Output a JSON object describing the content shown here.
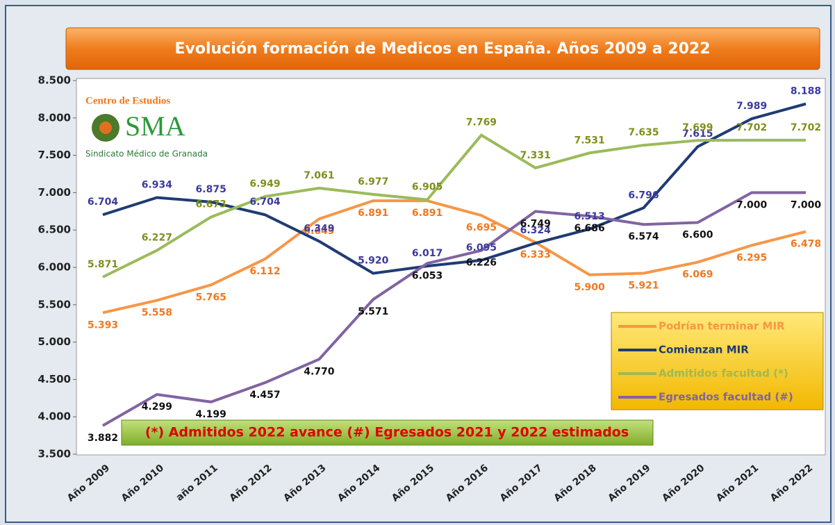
{
  "chart_data": {
    "type": "line",
    "title": "Evolución formación de Medicos en España. Años 2009 a 2022",
    "logo": {
      "title": "Centro de Estudios",
      "mark": "SMA",
      "subtitle": "Sindicato Médico de Granada"
    },
    "note": "(*) Admitidos 2022 avance (#) Egresados 2021 y 2022 estimados",
    "categories": [
      "Año 2009",
      "Año 2010",
      "año 2011",
      "Año 2012",
      "Año 2013",
      "Año 2014",
      "Año 2015",
      "Año 2016",
      "Año 2017",
      "Año 2018",
      "Año 2019",
      "Año 2020",
      "Año 2021",
      "Año 2022"
    ],
    "ylim": [
      3500,
      8500
    ],
    "yticks": [
      {
        "value": 3500,
        "label": "3.500"
      },
      {
        "value": 4000,
        "label": "4.000"
      },
      {
        "value": 4500,
        "label": "4.500"
      },
      {
        "value": 5000,
        "label": "5.000"
      },
      {
        "value": 5500,
        "label": "5.500"
      },
      {
        "value": 6000,
        "label": "6.000"
      },
      {
        "value": 6500,
        "label": "6.500"
      },
      {
        "value": 7000,
        "label": "7.000"
      },
      {
        "value": 7500,
        "label": "7.500"
      },
      {
        "value": 8000,
        "label": "8.000"
      },
      {
        "value": 8500,
        "label": "8.500"
      }
    ],
    "legend_position": "lower right",
    "series": [
      {
        "name": "Podrían terminar MIR",
        "color": "#f79646",
        "label_color": "#f07820",
        "values": [
          5393,
          5558,
          5765,
          6112,
          6649,
          6891,
          6891,
          6695,
          6333,
          5900,
          5921,
          6069,
          6295,
          6478
        ],
        "value_labels": [
          "5.393",
          "5.558",
          "5.765",
          "6.112",
          "6.649",
          "6.891",
          "6.891",
          "6.695",
          "6.333",
          "5.900",
          "5.921",
          "6.069",
          "6.295",
          "6.478"
        ]
      },
      {
        "name": "Comienzan MIR",
        "color": "#1f3b73",
        "label_color": "#3a3aa0",
        "values": [
          6704,
          6934,
          6875,
          6704,
          6349,
          5920,
          6017,
          6095,
          6324,
          6513,
          6796,
          7615,
          7989,
          8188
        ],
        "value_labels": [
          "6.704",
          "6.934",
          "6.875",
          "6.704",
          "6.349",
          "5.920",
          "6.017",
          "6.095",
          "6.324",
          "6.513",
          "6.796",
          "7.615",
          "7.989",
          "8.188"
        ]
      },
      {
        "name": "Admitidos facultad (*)",
        "color": "#9bbb59",
        "label_color": "#7f8f1a",
        "values": [
          5871,
          6227,
          6673,
          6949,
          7061,
          6977,
          6905,
          7769,
          7331,
          7531,
          7635,
          7699,
          7702,
          7702
        ],
        "value_labels": [
          "5.871",
          "6.227",
          "6.673",
          "6.949",
          "7.061",
          "6.977",
          "6.905",
          "7.769",
          "7.331",
          "7.531",
          "7.635",
          "7.699",
          "7.702",
          "7.702"
        ]
      },
      {
        "name": "Egresados facultad (#)",
        "color": "#8064a2",
        "label_color": "#111111",
        "values": [
          3882,
          4299,
          4199,
          4457,
          4770,
          5571,
          6053,
          6226,
          6749,
          6686,
          6574,
          6600,
          7000,
          7000
        ],
        "value_labels": [
          "3.882",
          "4.299",
          "4.199",
          "4.457",
          "4.770",
          "5.571",
          "6.053",
          "6.226",
          "6.749",
          "6.686",
          "6.574",
          "6.600",
          "7.000",
          "7.000"
        ]
      }
    ]
  }
}
